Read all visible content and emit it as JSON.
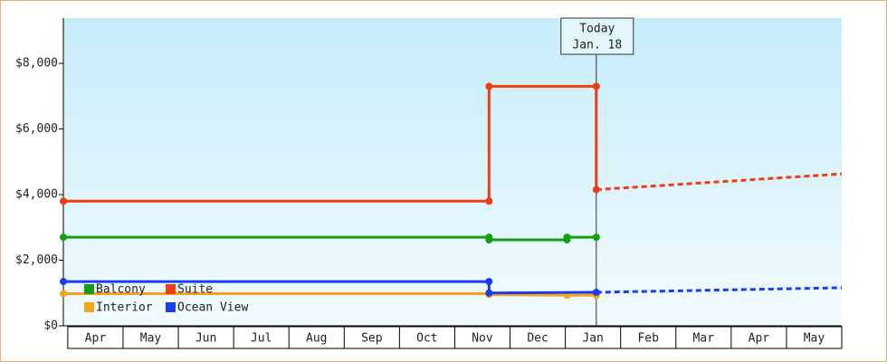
{
  "chart_data": {
    "type": "line",
    "categories": [
      "Apr",
      "May",
      "Jun",
      "Jul",
      "Aug",
      "Sep",
      "Oct",
      "Nov",
      "Dec",
      "Jan",
      "Feb",
      "Mar",
      "Apr",
      "May"
    ],
    "xlim": [
      -0.08,
      14.0
    ],
    "ylim": [
      0,
      9380
    ],
    "yticks": [
      {
        "value": 0,
        "label": "$0"
      },
      {
        "value": 2000,
        "label": "$2,000"
      },
      {
        "value": 4000,
        "label": "$4,000"
      },
      {
        "value": 6000,
        "label": "$6,000"
      },
      {
        "value": 8000,
        "label": "$8,000"
      }
    ],
    "legend": "lower left",
    "annotation": {
      "lines": [
        "Today",
        "Jan. 18"
      ],
      "x": 9.56
    },
    "series": [
      {
        "name": "Balcony",
        "color": "#12a012",
        "x": [
          -0.08,
          7.62,
          7.62,
          9.03,
          9.03,
          9.56
        ],
        "values": [
          2700,
          2700,
          2620,
          2620,
          2700,
          2700
        ]
      },
      {
        "name": "Suite",
        "color": "#f03c10",
        "x": [
          -0.08,
          7.62,
          7.62,
          9.56,
          9.56
        ],
        "values": [
          3800,
          3800,
          7300,
          7300,
          4150
        ],
        "forecast_x": [
          9.56,
          14.0
        ],
        "forecast_values": [
          4150,
          4630
        ]
      },
      {
        "name": "Interior",
        "color": "#f5a51a",
        "x": [
          -0.08,
          7.62,
          7.62,
          9.03,
          9.56
        ],
        "values": [
          980,
          980,
          950,
          930,
          930
        ]
      },
      {
        "name": "Ocean View",
        "color": "#1a3cf0",
        "x": [
          -0.08,
          7.62,
          7.62,
          9.56
        ],
        "values": [
          1350,
          1350,
          1000,
          1020
        ],
        "forecast_x": [
          9.56,
          14.0
        ],
        "forecast_values": [
          1020,
          1160
        ]
      }
    ]
  }
}
